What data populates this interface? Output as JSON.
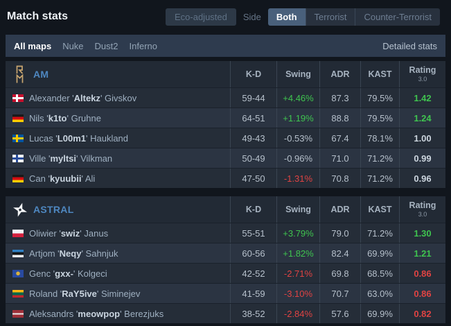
{
  "header": {
    "title": "Match stats",
    "eco_button": "Eco-adjusted",
    "side_label": "Side",
    "side_tabs": [
      {
        "label": "Both",
        "active": true
      },
      {
        "label": "Terrorist",
        "active": false
      },
      {
        "label": "Counter-Terrorist",
        "active": false
      }
    ]
  },
  "maps_bar": {
    "items": [
      {
        "label": "All maps",
        "active": true
      },
      {
        "label": "Nuke",
        "active": false
      },
      {
        "label": "Dust2",
        "active": false
      },
      {
        "label": "Inferno",
        "active": false
      }
    ],
    "detailed_stats_label": "Detailed stats"
  },
  "columns": [
    "K-D",
    "Swing",
    "ADR",
    "KAST"
  ],
  "rating_column": {
    "label": "Rating",
    "version": "3.0"
  },
  "colors": {
    "positive_green": "#3fc44f",
    "negative_red": "#e04343",
    "team_link_blue": "#4e87c0"
  },
  "teams": [
    {
      "name": "AM",
      "logo": "am-crest",
      "players": [
        {
          "flag": "dk",
          "country": "Denmark",
          "first": "Alexander",
          "nick": "Altekz",
          "last": "Givskov",
          "kd": "59-44",
          "swing": "+4.46%",
          "swing_color": "green",
          "adr": "87.3",
          "kast": "79.5%",
          "rating": "1.42",
          "rating_color": "green"
        },
        {
          "flag": "de",
          "country": "Germany",
          "first": "Nils",
          "nick": "k1to",
          "last": "Gruhne",
          "kd": "64-51",
          "swing": "+1.19%",
          "swing_color": "green",
          "adr": "88.8",
          "kast": "79.5%",
          "rating": "1.24",
          "rating_color": "green"
        },
        {
          "flag": "se",
          "country": "Sweden",
          "first": "Lucas",
          "nick": "L00m1",
          "last": "Haukland",
          "kd": "49-43",
          "swing": "-0.53%",
          "swing_color": "neutral",
          "adr": "67.4",
          "kast": "78.1%",
          "rating": "1.00",
          "rating_color": "neutral"
        },
        {
          "flag": "fi",
          "country": "Finland",
          "first": "Ville",
          "nick": "myltsi",
          "last": "Vilkman",
          "kd": "50-49",
          "swing": "-0.96%",
          "swing_color": "neutral",
          "adr": "71.0",
          "kast": "71.2%",
          "rating": "0.99",
          "rating_color": "neutral"
        },
        {
          "flag": "de",
          "country": "Germany",
          "first": "Can",
          "nick": "kyuubii",
          "last": "Ali",
          "kd": "47-50",
          "swing": "-1.31%",
          "swing_color": "red",
          "adr": "70.8",
          "kast": "71.2%",
          "rating": "0.96",
          "rating_color": "neutral"
        }
      ]
    },
    {
      "name": "ASTRAL",
      "logo": "astral-star",
      "players": [
        {
          "flag": "pl",
          "country": "Poland",
          "first": "Oliwier",
          "nick": "swiz",
          "last": "Janus",
          "kd": "55-51",
          "swing": "+3.79%",
          "swing_color": "green",
          "adr": "79.0",
          "kast": "71.2%",
          "rating": "1.30",
          "rating_color": "green"
        },
        {
          "flag": "ee",
          "country": "Estonia",
          "first": "Artjom",
          "nick": "Neqy",
          "last": "Sahnjuk",
          "kd": "60-56",
          "swing": "+1.82%",
          "swing_color": "green",
          "adr": "82.4",
          "kast": "69.9%",
          "rating": "1.21",
          "rating_color": "green"
        },
        {
          "flag": "xk",
          "country": "Kosovo",
          "first": "Genc",
          "nick": "gxx-",
          "last": "Kolgeci",
          "kd": "42-52",
          "swing": "-2.71%",
          "swing_color": "red",
          "adr": "69.8",
          "kast": "68.5%",
          "rating": "0.86",
          "rating_color": "red"
        },
        {
          "flag": "lt",
          "country": "Lithuania",
          "first": "Roland",
          "nick": "RaY5ive",
          "last": "Siminejev",
          "kd": "41-59",
          "swing": "-3.10%",
          "swing_color": "red",
          "adr": "70.7",
          "kast": "63.0%",
          "rating": "0.86",
          "rating_color": "red"
        },
        {
          "flag": "lv",
          "country": "Latvia",
          "first": "Aleksandrs",
          "nick": "meowpop",
          "last": "Berezjuks",
          "kd": "38-52",
          "swing": "-2.84%",
          "swing_color": "red",
          "adr": "57.6",
          "kast": "69.9%",
          "rating": "0.82",
          "rating_color": "red"
        }
      ]
    }
  ]
}
